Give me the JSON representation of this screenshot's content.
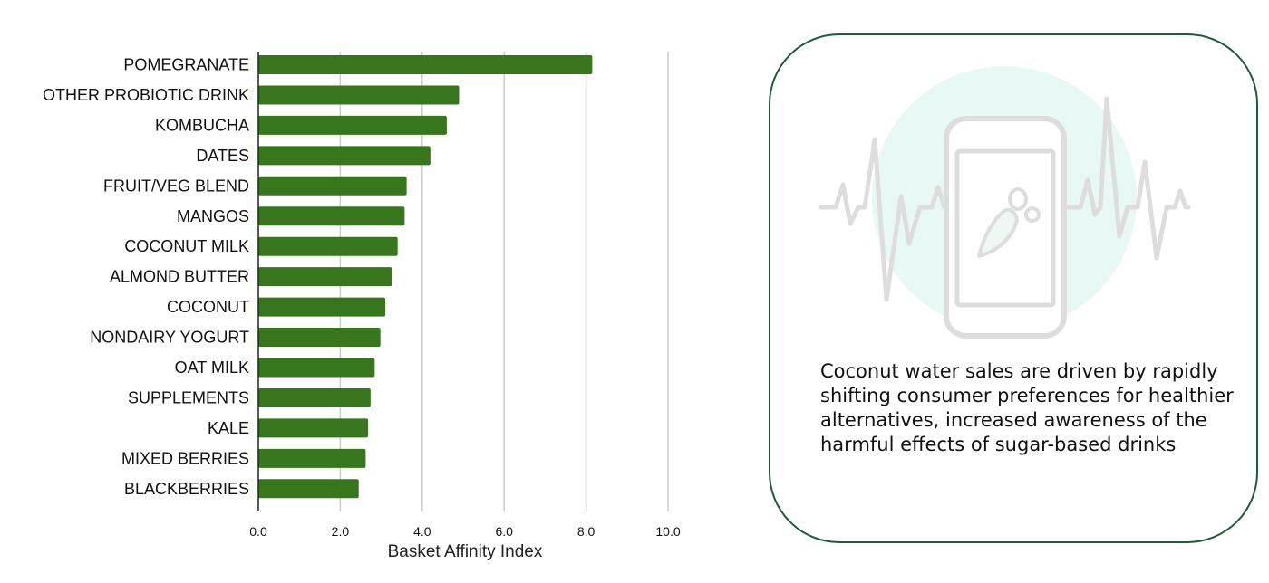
{
  "chart_data": {
    "type": "bar",
    "orientation": "horizontal",
    "categories": [
      "POMEGRANATE",
      "OTHER PROBIOTIC DRINK",
      "KOMBUCHA",
      "DATES",
      "FRUIT/VEG BLEND",
      "MANGOS",
      "COCONUT MILK",
      "ALMOND BUTTER",
      "COCONUT",
      "NONDAIRY YOGURT",
      "OAT MILK",
      "SUPPLEMENTS",
      "KALE",
      "MIXED BERRIES",
      "BLACKBERRIES"
    ],
    "values": [
      8.15,
      4.9,
      4.6,
      4.2,
      3.62,
      3.57,
      3.4,
      3.26,
      3.1,
      2.98,
      2.84,
      2.74,
      2.68,
      2.62,
      2.45
    ],
    "xlabel": "Basket Affinity Index",
    "ylabel": "",
    "xlim": [
      0,
      10
    ],
    "xticks": [
      0,
      2,
      4,
      6,
      8,
      10
    ],
    "xtick_labels": [
      "0.0",
      "2.0",
      "4.0",
      "6.0",
      "8.0",
      "10.0"
    ],
    "grid": true,
    "bar_color": "#38761d"
  },
  "card": {
    "text": "Coconut water sales are driven by rapidly shifting consumer preferences for healthier alternatives, increased awareness of the harmful effects of sugar-based drinks",
    "border_color": "#1f5a3a",
    "icon": "phone-heartbeat-carrot-icon"
  }
}
